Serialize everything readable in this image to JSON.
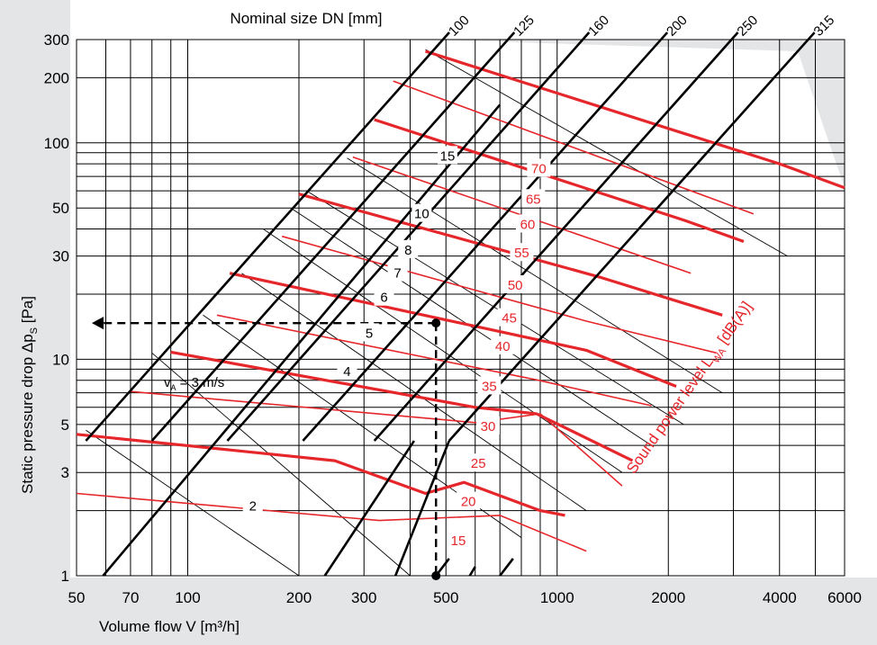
{
  "chart_data": {
    "type": "line",
    "top_axis_title": "Nominal size DN [mm]",
    "xlabel": "Volume flow V [m³/h]",
    "ylabel_main": "Static pressure drop Δp",
    "ylabel_sub": "S",
    "ylabel_unit": " [Pa]",
    "sound_label_main": "Sound power level L",
    "sound_label_sub": "WA",
    "sound_label_unit": " [dB(A)]",
    "velocity_label_main": "v",
    "velocity_label_sub": "A",
    "velocity_label_rest": " = 3 m/s",
    "x_scale": "log",
    "y_scale": "log",
    "xlim": [
      50,
      6000
    ],
    "ylim": [
      1,
      300
    ],
    "x_ticks": [
      50,
      70,
      100,
      200,
      300,
      500,
      1000,
      2000,
      4000,
      6000
    ],
    "x_tick_labels": [
      "50",
      "70",
      "100",
      "200",
      "300",
      "500",
      "1000",
      "2000",
      "4000",
      "6000"
    ],
    "y_ticks": [
      1,
      3,
      5,
      10,
      30,
      50,
      100,
      200,
      300
    ],
    "y_tick_labels": [
      "1",
      "3",
      "5",
      "10",
      "30",
      "50",
      "100",
      "200",
      "300"
    ],
    "colors": {
      "duct": "#000000",
      "sound": "#e5262a",
      "shade": "#e3e5e7",
      "panel": "#e3e5e7",
      "thin": "#000000"
    },
    "duct_sizes": [
      {
        "label": "100",
        "points": [
          [
            53,
            4.2
          ],
          [
            460,
            265
          ]
        ]
      },
      {
        "label": "125",
        "points": [
          [
            80,
            4.2
          ],
          [
            690,
            265
          ]
        ]
      },
      {
        "label": "160",
        "points": [
          [
            128,
            4.2
          ],
          [
            1100,
            265
          ]
        ]
      },
      {
        "label": "200",
        "points": [
          [
            205,
            4.2
          ],
          [
            1790,
            265
          ]
        ]
      },
      {
        "label": "250",
        "points": [
          [
            320,
            4.2
          ],
          [
            2780,
            265
          ]
        ]
      },
      {
        "label": "315",
        "points": [
          [
            510,
            4.2
          ],
          [
            4480,
            265
          ]
        ]
      }
    ],
    "extra_duct_segments": [
      [
        [
          59,
          1
        ],
        [
          700,
          150
        ]
      ],
      [
        [
          235,
          1
        ],
        [
          410,
          4.2
        ]
      ],
      [
        [
          365,
          1
        ],
        [
          510,
          4.2
        ]
      ],
      [
        [
          470,
          1
        ],
        [
          510,
          1.2
        ]
      ],
      [
        [
          580,
          1
        ],
        [
          600,
          1.1
        ]
      ],
      [
        [
          700,
          1
        ],
        [
          760,
          1.2
        ]
      ]
    ],
    "velocity_lines": [
      {
        "label": "2",
        "points": [
          [
            53,
            4.7
          ],
          [
            200,
            1
          ]
        ]
      },
      {
        "label": "3 m/s",
        "points": [
          [
            80,
            10.7
          ],
          [
            400,
            1
          ]
        ]
      },
      {
        "label": "4",
        "points": [
          [
            110,
            16
          ],
          [
            800,
            1.5
          ]
        ]
      },
      {
        "label": "5",
        "points": [
          [
            140,
            25
          ],
          [
            1200,
            2
          ]
        ]
      },
      {
        "label": "6",
        "points": [
          [
            160,
            40
          ],
          [
            1500,
            3
          ]
        ]
      },
      {
        "label": "7",
        "points": [
          [
            190,
            50
          ],
          [
            1800,
            4
          ]
        ]
      },
      {
        "label": "8",
        "points": [
          [
            210,
            60
          ],
          [
            2200,
            5
          ]
        ]
      },
      {
        "label": "10",
        "points": [
          [
            270,
            85
          ],
          [
            2800,
            7
          ]
        ]
      },
      {
        "label": "15",
        "points": [
          [
            440,
            270
          ],
          [
            4200,
            30
          ]
        ]
      }
    ],
    "velocity_label_positions": [
      {
        "label": "2",
        "x": 150,
        "y": 2.1
      },
      {
        "label": "4",
        "x": 270,
        "y": 8.8
      },
      {
        "label": "5",
        "x": 310,
        "y": 13.2
      },
      {
        "label": "6",
        "x": 340,
        "y": 19.3
      },
      {
        "label": "7",
        "x": 370,
        "y": 25
      },
      {
        "label": "8",
        "x": 395,
        "y": 32
      },
      {
        "label": "10",
        "x": 430,
        "y": 47
      },
      {
        "label": "15",
        "x": 505,
        "y": 87
      }
    ],
    "sound_power_levels": [
      {
        "label": "15",
        "points": [
          [
            50,
            2.4
          ],
          [
            330,
            1.8
          ],
          [
            700,
            1.9
          ],
          [
            1200,
            1.3
          ]
        ],
        "bold": false,
        "label_at": [
          540,
          1.45
        ]
      },
      {
        "label": "20",
        "points": [
          [
            50,
            4.5
          ],
          [
            250,
            3.4
          ],
          [
            440,
            2.4
          ],
          [
            560,
            2.7
          ],
          [
            900,
            2.0
          ],
          [
            1050,
            1.9
          ]
        ],
        "bold": true,
        "label_at": [
          575,
          2.2
        ]
      },
      {
        "label": "25",
        "points": [
          [
            70,
            7.1
          ],
          [
            600,
            5.1
          ],
          [
            900,
            5.6
          ],
          [
            1500,
            2.6
          ]
        ],
        "bold": false,
        "label_at": [
          612,
          3.3
        ]
      },
      {
        "label": "30",
        "points": [
          [
            90,
            10.8
          ],
          [
            600,
            6.0
          ],
          [
            880,
            5.6
          ],
          [
            1600,
            3.4
          ]
        ],
        "bold": true,
        "label_at": [
          650,
          4.9
        ]
      },
      {
        "label": "35",
        "points": [
          [
            120,
            16
          ],
          [
            890,
            8.0
          ],
          [
            1800,
            6.1
          ]
        ],
        "bold": false,
        "label_at": [
          655,
          7.5
        ]
      },
      {
        "label": "40",
        "points": [
          [
            130,
            25
          ],
          [
            1200,
            11.0
          ],
          [
            2100,
            7.5
          ]
        ],
        "bold": true,
        "label_at": [
          712,
          11.5
        ]
      },
      {
        "label": "45",
        "points": [
          [
            180,
            37
          ],
          [
            1200,
            15
          ],
          [
            2700,
            10.7
          ]
        ],
        "bold": false,
        "label_at": [
          742,
          15.5
        ]
      },
      {
        "label": "50",
        "points": [
          [
            200,
            58
          ],
          [
            1300,
            24
          ],
          [
            2800,
            16
          ]
        ],
        "bold": true,
        "label_at": [
          770,
          22
        ]
      },
      {
        "label": "55",
        "points": [
          [
            280,
            86
          ],
          [
            2300,
            25
          ]
        ],
        "bold": false,
        "label_at": [
          802,
          31
        ]
      },
      {
        "label": "60",
        "points": [
          [
            320,
            128
          ],
          [
            2200,
            44
          ],
          [
            3200,
            35
          ]
        ],
        "bold": true,
        "label_at": [
          832,
          42
        ]
      },
      {
        "label": "65",
        "points": [
          [
            360,
            193
          ],
          [
            3400,
            47
          ]
        ],
        "bold": false,
        "label_at": [
          862,
          55
        ]
      },
      {
        "label": "70",
        "points": [
          [
            440,
            265
          ],
          [
            4000,
            80
          ],
          [
            6000,
            62
          ]
        ],
        "bold": true,
        "label_at": [
          892,
          76
        ]
      }
    ],
    "example_point": {
      "x": 470,
      "y": 14.7
    },
    "example_baseline": {
      "x": 470,
      "y": 1
    },
    "example_target": {
      "x": 55,
      "y": 14.7
    }
  }
}
